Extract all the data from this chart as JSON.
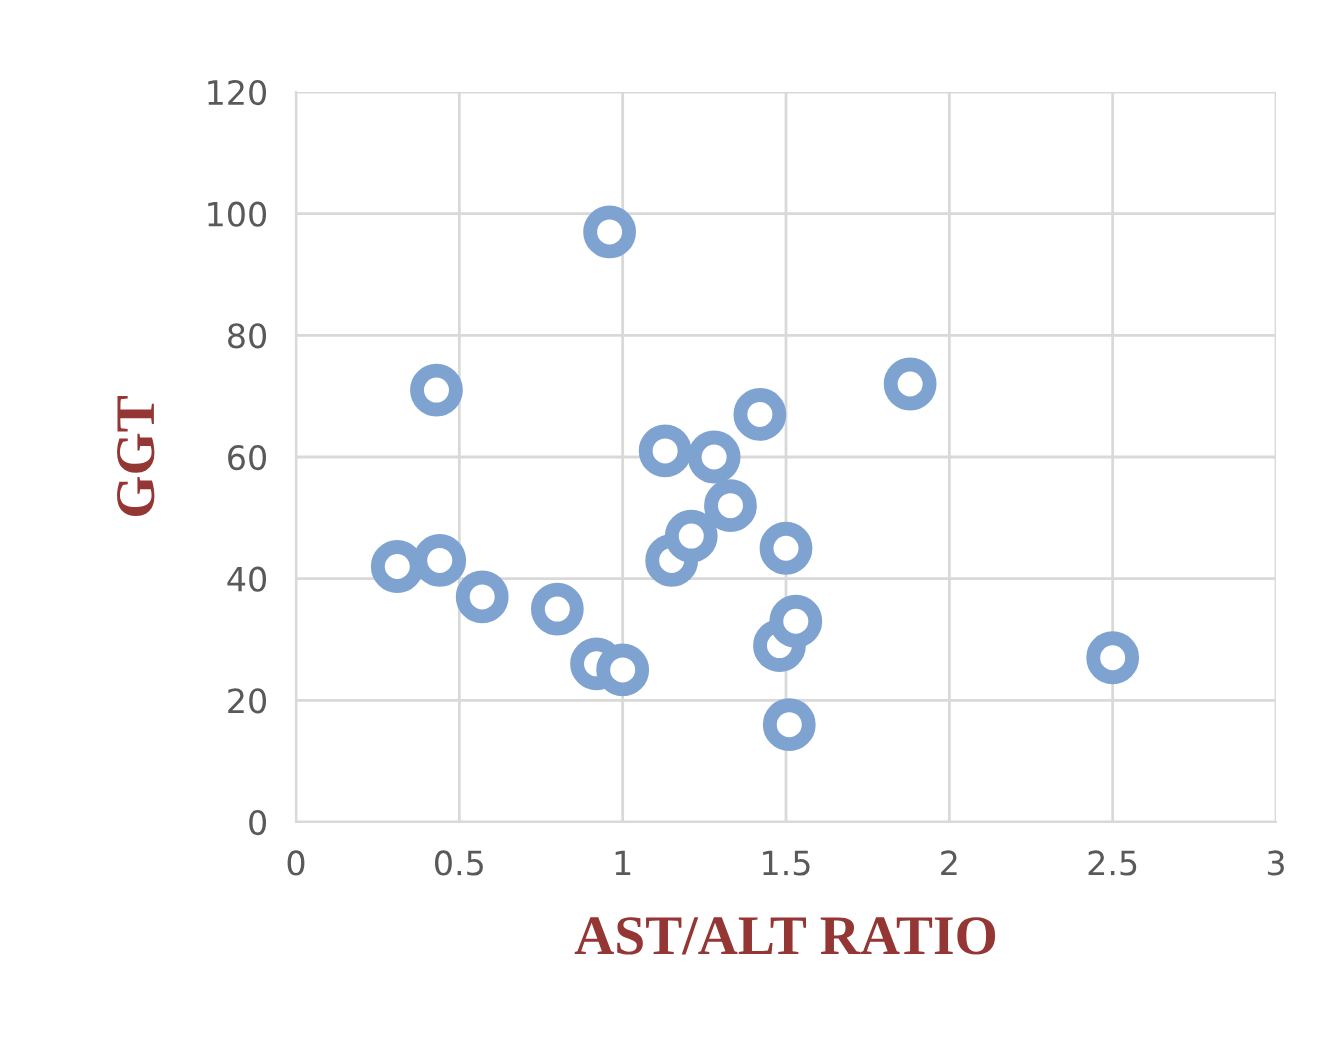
{
  "chart_data": {
    "type": "scatter",
    "xlabel": "AST/ALT RATIO",
    "ylabel": "GGT",
    "x": [
      0.31,
      0.44,
      0.43,
      0.57,
      0.8,
      0.92,
      1.0,
      0.96,
      1.13,
      1.15,
      1.21,
      1.28,
      1.33,
      1.42,
      1.5,
      1.48,
      1.53,
      1.51,
      1.88,
      2.5
    ],
    "series": [
      {
        "color": "#7fa3d1",
        "values": [
          42,
          43,
          71,
          37,
          35,
          26,
          25,
          97,
          61,
          43,
          47,
          60,
          52,
          67,
          45,
          29,
          33,
          16,
          72,
          27
        ]
      }
    ],
    "xlim": [
      0,
      3
    ],
    "xticks": [
      0,
      0.5,
      1,
      1.5,
      2,
      2.5,
      3
    ],
    "ylim": [
      0,
      120
    ],
    "yticks": [
      0,
      20,
      40,
      60,
      80,
      100,
      120
    ],
    "grid": true,
    "marker": "circle",
    "legend": false
  }
}
